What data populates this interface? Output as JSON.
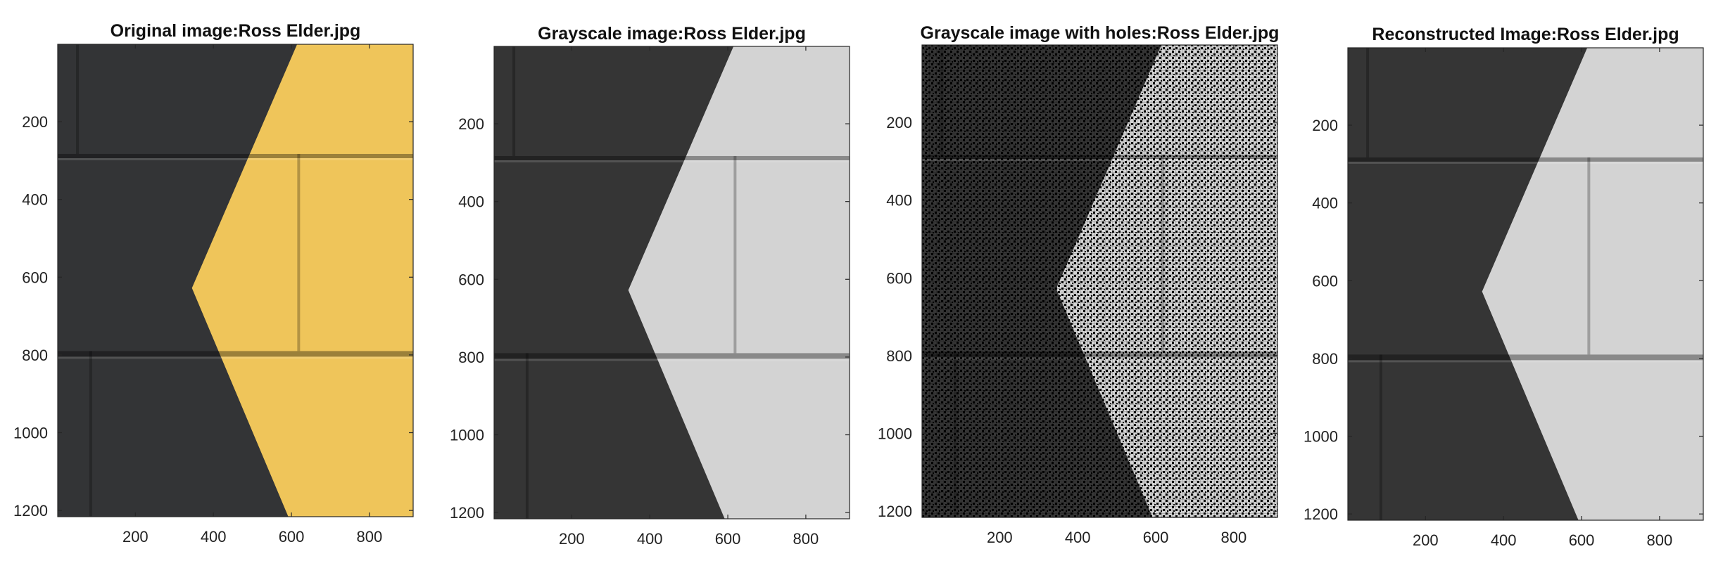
{
  "chart_data": [
    {
      "type": "image",
      "title": "Original image:Ross Elder.jpg",
      "image_type": "color",
      "wall_color": "#efc55a",
      "xlim": [
        1,
        912
      ],
      "ylim": [
        1,
        1216
      ],
      "x_ticks": [
        200,
        400,
        600,
        800
      ],
      "y_ticks": [
        200,
        400,
        600,
        800,
        1000,
        1200
      ],
      "reversed_y": true
    },
    {
      "type": "image",
      "title": "Grayscale image:Ross Elder.jpg",
      "image_type": "grayscale",
      "xlim": [
        1,
        912
      ],
      "ylim": [
        1,
        1216
      ],
      "x_ticks": [
        200,
        400,
        600,
        800
      ],
      "y_ticks": [
        200,
        400,
        600,
        800,
        1000,
        1200
      ],
      "reversed_y": true
    },
    {
      "type": "image",
      "title": "Grayscale image with holes:Ross Elder.jpg",
      "image_type": "grayscale_with_holes",
      "xlim": [
        1,
        912
      ],
      "ylim": [
        1,
        1216
      ],
      "x_ticks": [
        200,
        400,
        600,
        800
      ],
      "y_ticks": [
        200,
        400,
        600,
        800,
        1000,
        1200
      ],
      "reversed_y": true
    },
    {
      "type": "image",
      "title": "Reconstructed Image:Ross Elder.jpg",
      "image_type": "grayscale",
      "xlim": [
        1,
        912
      ],
      "ylim": [
        1,
        1216
      ],
      "x_ticks": [
        200,
        400,
        600,
        800
      ],
      "y_ticks": [
        200,
        400,
        600,
        800,
        1000,
        1200
      ],
      "reversed_y": true
    }
  ],
  "colors": {
    "dark_wall": "#333436",
    "gray_light_wall": "#d3d3d3",
    "gray_dark_wall": "#353535",
    "mortar_dark": "#1d1d1f"
  }
}
